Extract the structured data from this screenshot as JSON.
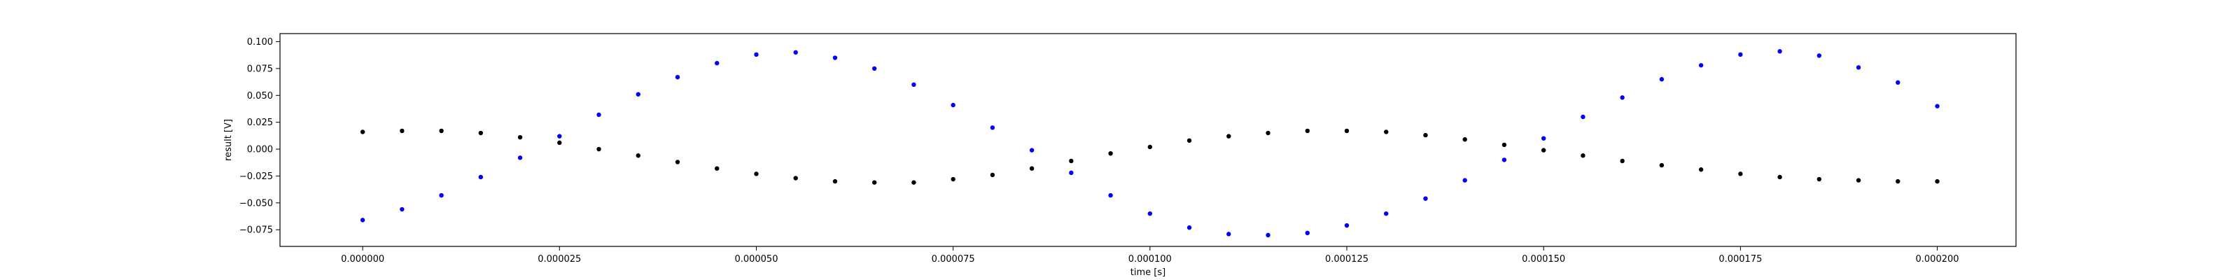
{
  "chart_data": {
    "type": "scatter",
    "xlabel": "time [s]",
    "ylabel": "result [V]",
    "xlim": [
      -1.05e-05,
      0.00021
    ],
    "ylim": [
      -0.0905,
      0.1075
    ],
    "x_ticks": [
      0.0,
      2.5e-05,
      5e-05,
      7.5e-05,
      0.0001,
      0.000125,
      0.00015,
      0.000175,
      0.0002
    ],
    "x_tick_labels": [
      "0.000000",
      "0.000025",
      "0.000050",
      "0.000075",
      "0.000100",
      "0.000125",
      "0.000150",
      "0.000175",
      "0.000200"
    ],
    "y_ticks": [
      -0.075,
      -0.05,
      -0.025,
      0.0,
      0.025,
      0.05,
      0.075,
      0.1
    ],
    "y_tick_labels": [
      "−0.075",
      "−0.050",
      "−0.025",
      "0.000",
      "0.025",
      "0.050",
      "0.075",
      "0.100"
    ],
    "grid": false,
    "series": [
      {
        "color": "#0000ff",
        "marker": "dot",
        "x": [
          0.0,
          5e-06,
          1e-05,
          1.5e-05,
          2e-05,
          2.5e-05,
          3e-05,
          3.5e-05,
          4e-05,
          4.5e-05,
          5e-05,
          5.5e-05,
          6e-05,
          6.5e-05,
          7e-05,
          7.5e-05,
          8e-05,
          8.5e-05,
          9e-05,
          9.5e-05,
          0.0001,
          0.000105,
          0.00011,
          0.000115,
          0.00012,
          0.000125,
          0.00013,
          0.000135,
          0.00014,
          0.000145,
          0.00015,
          0.000155,
          0.00016,
          0.000165,
          0.00017,
          0.000175,
          0.00018,
          0.000185,
          0.00019,
          0.000195,
          0.0002
        ],
        "y": [
          -0.066,
          -0.056,
          -0.043,
          -0.026,
          -0.008,
          0.012,
          0.032,
          0.051,
          0.067,
          0.08,
          0.088,
          0.09,
          0.085,
          0.075,
          0.06,
          0.041,
          0.02,
          -0.001,
          -0.022,
          -0.043,
          -0.06,
          -0.073,
          -0.079,
          -0.08,
          -0.078,
          -0.071,
          -0.06,
          -0.046,
          -0.029,
          -0.01,
          0.01,
          0.03,
          0.048,
          0.065,
          0.078,
          0.088,
          0.091,
          0.087,
          0.076,
          0.062,
          0.04
        ]
      },
      {
        "color": "#000000",
        "marker": "dot",
        "x": [
          0.0,
          5e-06,
          1e-05,
          1.5e-05,
          2e-05,
          2.5e-05,
          3e-05,
          3.5e-05,
          4e-05,
          4.5e-05,
          5e-05,
          5.5e-05,
          6e-05,
          6.5e-05,
          7e-05,
          7.5e-05,
          8e-05,
          8.5e-05,
          9e-05,
          9.5e-05,
          0.0001,
          0.000105,
          0.00011,
          0.000115,
          0.00012,
          0.000125,
          0.00013,
          0.000135,
          0.00014,
          0.000145,
          0.00015,
          0.000155,
          0.00016,
          0.000165,
          0.00017,
          0.000175,
          0.00018,
          0.000185,
          0.00019,
          0.000195,
          0.0002
        ],
        "y": [
          0.016,
          0.017,
          0.017,
          0.015,
          0.011,
          0.006,
          0.0,
          -0.006,
          -0.012,
          -0.018,
          -0.023,
          -0.027,
          -0.03,
          -0.031,
          -0.031,
          -0.028,
          -0.024,
          -0.018,
          -0.011,
          -0.004,
          0.002,
          0.008,
          0.012,
          0.015,
          0.017,
          0.017,
          0.016,
          0.013,
          0.009,
          0.004,
          -0.001,
          -0.006,
          -0.011,
          -0.015,
          -0.019,
          -0.023,
          -0.026,
          -0.028,
          -0.029,
          -0.03,
          -0.03
        ]
      }
    ]
  }
}
